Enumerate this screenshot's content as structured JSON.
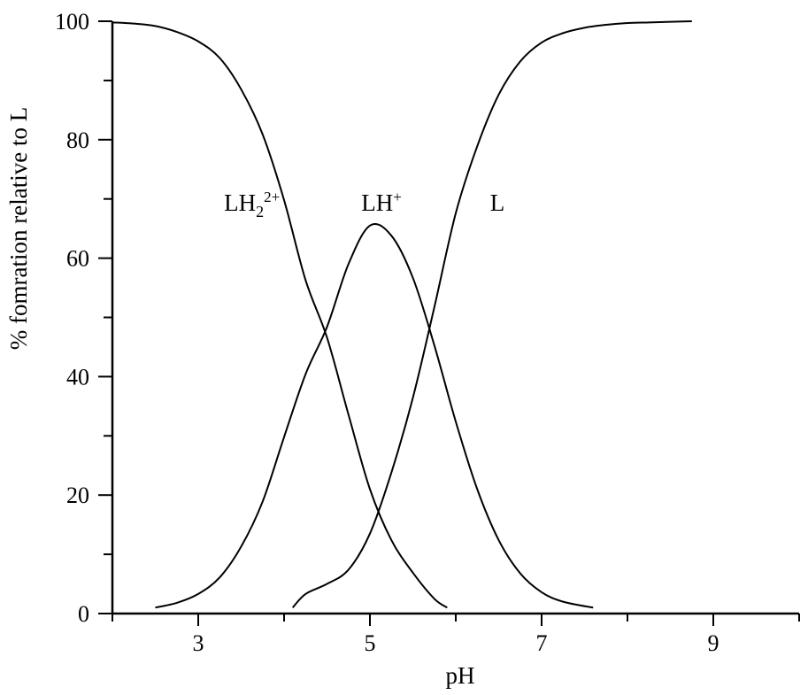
{
  "chart_data": {
    "type": "line",
    "title": "",
    "xlabel": "pH",
    "ylabel": "% fomration relative to L",
    "xlim": [
      2,
      10
    ],
    "ylim": [
      0,
      100
    ],
    "xticks": [
      3,
      5,
      7,
      9
    ],
    "xticks_minor": [
      2,
      3,
      4,
      5,
      6,
      7,
      8,
      9,
      10
    ],
    "yticks": [
      0,
      20,
      40,
      60,
      80,
      100
    ],
    "yticks_minor": [
      0,
      10,
      20,
      30,
      40,
      50,
      60,
      70,
      80,
      90,
      100
    ],
    "grid": false,
    "legend": "none",
    "series": [
      {
        "label_text": "LH",
        "label_sub": "2",
        "label_sup": "2+",
        "label_at": {
          "x": 3.3,
          "y": 68
        },
        "color": "#000000",
        "x": [
          2.0,
          2.25,
          2.5,
          2.75,
          3.0,
          3.25,
          3.5,
          3.75,
          4.0,
          4.25,
          4.5,
          4.75,
          5.0,
          5.25,
          5.5,
          5.75,
          5.9
        ],
        "y": [
          99.8,
          99.6,
          99.2,
          98.2,
          96.6,
          93.8,
          88.5,
          80.9,
          69.8,
          56.3,
          46.6,
          33.6,
          21.0,
          12.4,
          6.9,
          2.5,
          1.0
        ]
      },
      {
        "label_text": "LH",
        "label_sub": "",
        "label_sup": "+",
        "label_at": {
          "x": 4.9,
          "y": 68
        },
        "color": "#000000",
        "x": [
          2.5,
          2.75,
          3.0,
          3.25,
          3.5,
          3.75,
          4.0,
          4.25,
          4.5,
          4.75,
          5.0,
          5.25,
          5.5,
          5.75,
          6.0,
          6.25,
          6.5,
          6.75,
          7.0,
          7.25,
          7.6
        ],
        "y": [
          1.0,
          1.8,
          3.3,
          6.1,
          11.3,
          18.9,
          29.8,
          40.4,
          48.4,
          59.0,
          65.5,
          63.8,
          56.7,
          45.3,
          32.4,
          21.0,
          12.4,
          6.8,
          3.6,
          2.0,
          1.0
        ]
      },
      {
        "label_text": "L",
        "label_sub": "",
        "label_sup": "",
        "label_at": {
          "x": 6.4,
          "y": 68
        },
        "color": "#000000",
        "x": [
          4.1,
          4.25,
          4.5,
          4.75,
          5.0,
          5.25,
          5.5,
          5.75,
          6.0,
          6.25,
          6.5,
          6.75,
          7.0,
          7.25,
          7.5,
          7.75,
          8.0,
          8.25,
          8.5,
          8.75
        ],
        "y": [
          1.0,
          3.3,
          5.0,
          7.4,
          13.5,
          23.8,
          36.4,
          51.7,
          67.6,
          78.9,
          87.6,
          93.2,
          96.4,
          98.0,
          98.9,
          99.4,
          99.7,
          99.8,
          99.9,
          100.0
        ]
      }
    ]
  }
}
